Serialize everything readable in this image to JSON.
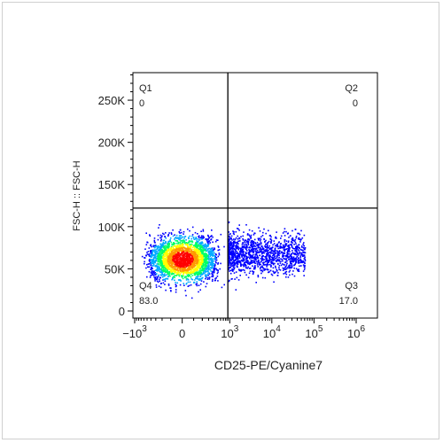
{
  "chart_data": {
    "type": "scatter",
    "subtype": "flow-cytometry-density-plot",
    "xlabel": "CD25-PE/Cyanine7",
    "ylabel": "FSC-H :: FSC-H",
    "x_scale": "biexponential",
    "x_ticks": [
      {
        "value": -1000,
        "base": "−10",
        "exp": "3"
      },
      {
        "value": 0,
        "base": "0",
        "exp": ""
      },
      {
        "value": 1000,
        "base": "10",
        "exp": "3"
      },
      {
        "value": 10000,
        "base": "10",
        "exp": "4"
      },
      {
        "value": 100000,
        "base": "10",
        "exp": "5"
      },
      {
        "value": 1000000,
        "base": "10",
        "exp": "6"
      }
    ],
    "y_scale": "linear",
    "ylim": [
      0,
      290000
    ],
    "y_ticks": [
      {
        "value": 0,
        "label": "0"
      },
      {
        "value": 50000,
        "label": "50K"
      },
      {
        "value": 100000,
        "label": "100K"
      },
      {
        "value": 150000,
        "label": "150K"
      },
      {
        "value": 200000,
        "label": "200K"
      },
      {
        "value": 250000,
        "label": "250K"
      }
    ],
    "gate": {
      "x": 900,
      "y": 122000
    },
    "quadrants": [
      {
        "name": "Q1",
        "value": "0",
        "corner": "top-left"
      },
      {
        "name": "Q2",
        "value": "0",
        "corner": "top-right"
      },
      {
        "name": "Q3",
        "value": "17.0",
        "corner": "bottom-right"
      },
      {
        "name": "Q4",
        "value": "83.0",
        "corner": "bottom-left"
      }
    ],
    "populations": [
      {
        "name": "main",
        "x_center": 0,
        "y_center": 62000,
        "x_spread": 200,
        "y_spread": 13000
      },
      {
        "name": "tail",
        "x_range": [
          900,
          60000
        ],
        "y_center": 68000,
        "y_spread": 12000
      }
    ],
    "density_colors": [
      "#0000ff",
      "#00aaff",
      "#00ff66",
      "#ffff00",
      "#ff9900",
      "#ff0000"
    ],
    "grid": false,
    "legend": "none"
  }
}
